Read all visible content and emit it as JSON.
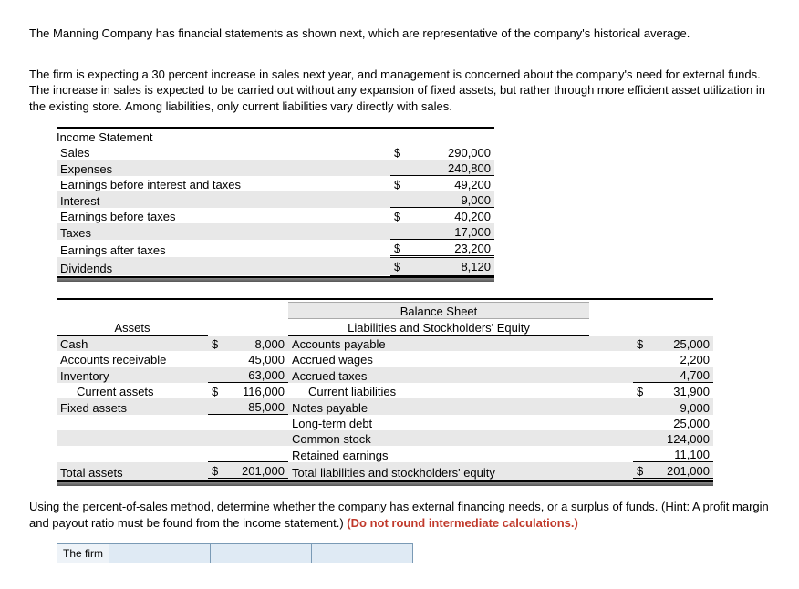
{
  "intro": {
    "p1": "The Manning Company has financial statements as shown next, which are representative of the company's historical average.",
    "p2": "The firm is expecting a 30 percent increase in sales next year, and management is concerned about the company's need for external funds. The increase in sales is expected to be carried out without any expansion of fixed assets, but rather through more efficient asset utilization in the existing store. Among liabilities, only current liabilities vary directly with sales."
  },
  "income_statement": {
    "title": "Income Statement",
    "rows": [
      {
        "label": "Sales",
        "cur": "$",
        "val": "290,000",
        "underline": "none"
      },
      {
        "label": "Expenses",
        "cur": "",
        "val": "240,800",
        "underline": "single"
      },
      {
        "label": "Earnings before interest and taxes",
        "cur": "$",
        "val": "49,200",
        "underline": "none"
      },
      {
        "label": "Interest",
        "cur": "",
        "val": "9,000",
        "underline": "single"
      },
      {
        "label": "Earnings before taxes",
        "cur": "$",
        "val": "40,200",
        "underline": "none"
      },
      {
        "label": "Taxes",
        "cur": "",
        "val": "17,000",
        "underline": "single"
      },
      {
        "label": "Earnings after taxes",
        "cur": "$",
        "val": "23,200",
        "underline": "double"
      },
      {
        "label": "Dividends",
        "cur": "$",
        "val": "8,120",
        "underline": "double"
      }
    ]
  },
  "balance_sheet": {
    "title": "Balance Sheet",
    "assets_header": "Assets",
    "liab_header": "Liabilities and Stockholders' Equity",
    "rows": [
      {
        "al": "Cash",
        "acur": "$",
        "av": "8,000",
        "ll": "Accounts payable",
        "lcur": "$",
        "lv": "25,000",
        "a_ul": "none",
        "l_ul": "none"
      },
      {
        "al": "Accounts receivable",
        "acur": "",
        "av": "45,000",
        "ll": "Accrued wages",
        "lcur": "",
        "lv": "2,200",
        "a_ul": "none",
        "l_ul": "none"
      },
      {
        "al": "Inventory",
        "acur": "",
        "av": "63,000",
        "ll": "Accrued taxes",
        "lcur": "",
        "lv": "4,700",
        "a_ul": "single",
        "l_ul": "single"
      },
      {
        "al": "   Current assets",
        "acur": "$",
        "av": "116,000",
        "ll": "   Current liabilities",
        "lcur": "$",
        "lv": "31,900",
        "a_ul": "none",
        "l_ul": "none"
      },
      {
        "al": "Fixed assets",
        "acur": "",
        "av": "85,000",
        "ll": "Notes payable",
        "lcur": "",
        "lv": "9,000",
        "a_ul": "single",
        "l_ul": "none"
      },
      {
        "al": "",
        "acur": "",
        "av": "",
        "ll": "Long-term debt",
        "lcur": "",
        "lv": "25,000",
        "a_ul": "none",
        "l_ul": "none"
      },
      {
        "al": "",
        "acur": "",
        "av": "",
        "ll": "Common stock",
        "lcur": "",
        "lv": "124,000",
        "a_ul": "none",
        "l_ul": "none"
      },
      {
        "al": "",
        "acur": "",
        "av": "",
        "ll": "Retained earnings",
        "lcur": "",
        "lv": "11,100",
        "a_ul": "none",
        "l_ul": "single"
      }
    ],
    "total": {
      "al": "Total assets",
      "acur": "$",
      "av": "201,000",
      "ll": "Total liabilities and stockholders' equity",
      "lcur": "$",
      "lv": "201,000"
    }
  },
  "question": {
    "text_black": "Using the percent-of-sales method, determine whether the company has external financing needs, or a surplus of funds. (Hint: A profit margin and payout ratio must be found from the income statement.) ",
    "text_red": "(Do not round intermediate calculations.)"
  },
  "answer": {
    "label": "The firm"
  },
  "style": {
    "alt_bg": "#e8e8e8",
    "border_color": "#000000",
    "red": "#c0392b"
  }
}
